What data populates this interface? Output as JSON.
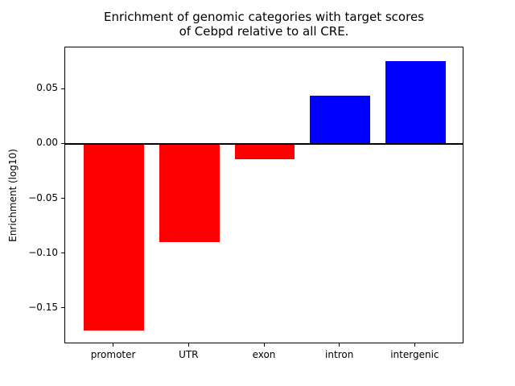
{
  "chart_data": {
    "type": "bar",
    "title": "Enrichment of genomic categories with target scores\nof Cebpd relative to all CRE.",
    "xlabel": "",
    "ylabel": "Enrichment (log10)",
    "categories": [
      "promoter",
      "UTR",
      "exon",
      "intron",
      "intergenic"
    ],
    "values": [
      -0.17,
      -0.089,
      -0.014,
      0.044,
      0.076
    ],
    "bar_colors": [
      "#ff0000",
      "#ff0000",
      "#ff0000",
      "#0000ff",
      "#0000ff"
    ],
    "negative_color": "#ff0000",
    "positive_color": "#0000ff",
    "yticks": [
      0.05,
      0.0,
      -0.05,
      -0.1,
      -0.15
    ],
    "ytick_labels": [
      "0.05",
      "0.00",
      "−0.05",
      "−0.10",
      "−0.15"
    ],
    "ylim": [
      -0.1823,
      0.0883
    ],
    "grid": false,
    "legend_position": "none",
    "zero_line": true,
    "axis_color": "#000000",
    "background_color": "#ffffff"
  }
}
